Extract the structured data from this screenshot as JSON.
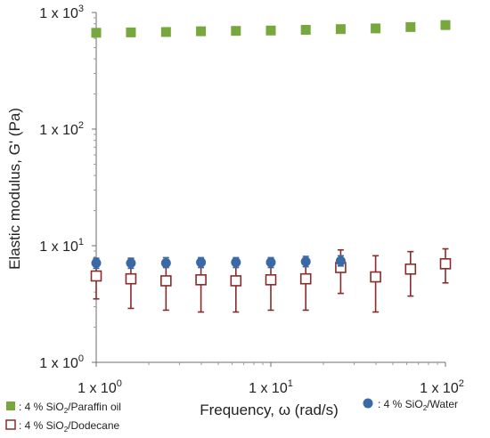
{
  "chart_data": {
    "type": "scatter",
    "xlabel": "Frequency, ω (rad/s)",
    "ylabel": "Elastic modulus, G' (Pa)",
    "x_scale": "log",
    "y_scale": "log",
    "xlim": [
      1,
      100
    ],
    "ylim": [
      1,
      1000
    ],
    "x_ticks": [
      {
        "value": 1,
        "base": "1 x 10",
        "exp": "0"
      },
      {
        "value": 10,
        "base": "1 x 10",
        "exp": "1"
      },
      {
        "value": 100,
        "base": "1 x 10",
        "exp": "2"
      }
    ],
    "y_ticks": [
      {
        "value": 1,
        "base": "1 x 10",
        "exp": "0"
      },
      {
        "value": 10,
        "base": "1 x 10",
        "exp": "1"
      },
      {
        "value": 100,
        "base": "1 x 10",
        "exp": "2"
      },
      {
        "value": 1000,
        "base": "1 x 10",
        "exp": "3"
      }
    ],
    "grid": false,
    "series": [
      {
        "legend_prefix": ": 4 % SiO",
        "legend_sub": "2",
        "legend_suffix": "/Paraffin oil",
        "marker": "filled-square",
        "color": "#77a83d",
        "x": [
          1,
          1.58,
          2.51,
          3.98,
          6.31,
          10,
          15.85,
          25.12,
          39.81,
          63.1,
          100
        ],
        "y": [
          670,
          675,
          680,
          690,
          695,
          700,
          710,
          720,
          730,
          750,
          780
        ]
      },
      {
        "legend_prefix": ": 4 % SiO",
        "legend_sub": "2",
        "legend_suffix": "/Water",
        "marker": "filled-circle",
        "color": "#3b69a5",
        "x": [
          1,
          1.58,
          2.51,
          3.98,
          6.31,
          10,
          15.85,
          25.12
        ],
        "y": [
          7.1,
          7.1,
          7.1,
          7.2,
          7.2,
          7.2,
          7.3,
          7.4
        ],
        "err_high": [
          7.8,
          7.8,
          7.9,
          7.9,
          7.9,
          7.9,
          8.1,
          8.2
        ],
        "err_low": [
          6.4,
          6.4,
          6.5,
          6.5,
          6.5,
          6.5,
          6.6,
          6.7
        ]
      },
      {
        "legend_prefix": ": 4 % SiO",
        "legend_sub": "2",
        "legend_suffix": "/Dodecane",
        "marker": "open-square",
        "color": "#8b2a2a",
        "x": [
          1,
          1.58,
          2.51,
          3.98,
          6.31,
          10,
          15.85,
          25.12,
          39.81,
          63.1,
          100
        ],
        "y": [
          5.5,
          5.2,
          5.0,
          5.1,
          5.0,
          5.1,
          5.2,
          6.5,
          5.4,
          6.3,
          7.0
        ],
        "err_high": [
          7.8,
          7.8,
          7.6,
          7.6,
          7.6,
          7.6,
          7.8,
          9.2,
          8.2,
          8.9,
          9.4
        ],
        "err_low": [
          3.5,
          2.9,
          2.8,
          2.7,
          2.7,
          2.8,
          2.8,
          3.9,
          2.7,
          3.7,
          4.8
        ]
      }
    ]
  }
}
